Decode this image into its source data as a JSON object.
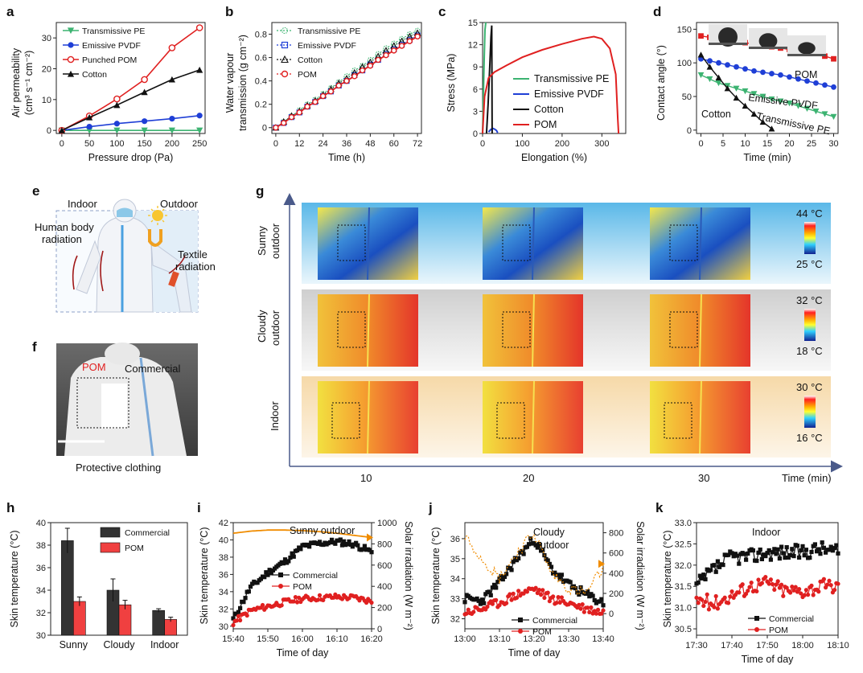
{
  "panels": {
    "a": "a",
    "b": "b",
    "c": "c",
    "d": "d",
    "e": "e",
    "f": "f",
    "g": "g",
    "h": "h",
    "i": "i",
    "j": "j",
    "k": "k"
  },
  "colors": {
    "transmissive_pe": "#3cb371",
    "emissive_pvdf": "#1f3fd6",
    "punched_pom": "#e02020",
    "pom": "#e02020",
    "cotton": "#111111",
    "commercial_bar": "#333333",
    "pom_bar": "#f04040",
    "solar": "#f08c00"
  },
  "panel_e": {
    "indoor": "Indoor",
    "outdoor": "Outdoor",
    "human_body_radiation_1": "Human body",
    "human_body_radiation_2": "radiation",
    "textile_radiation_1": "Textile",
    "textile_radiation_2": "radiation"
  },
  "panel_f": {
    "pom": "POM",
    "commercial": "Commercial",
    "caption": "Protective clothing"
  },
  "panel_g": {
    "rows": [
      {
        "label_1": "Sunny",
        "label_2": "outdoor",
        "scale_max": "44 °C",
        "scale_min": "25 °C"
      },
      {
        "label_1": "Cloudy",
        "label_2": "outdoor",
        "scale_max": "32 °C",
        "scale_min": "18 °C"
      },
      {
        "label_1": "Indoor",
        "label_2": "",
        "scale_max": "30 °C",
        "scale_min": "16 °C"
      }
    ],
    "times": [
      "10",
      "20",
      "30"
    ],
    "xlabel": "Time (min)"
  },
  "chart_data": [
    {
      "panel": "a",
      "type": "line",
      "xlabel": "Pressure drop (Pa)",
      "ylabel": "Air permeability",
      "ylabel_units": "(cm³ s⁻¹ cm⁻²)",
      "xlim": [
        -10,
        260
      ],
      "ylim": [
        -1,
        35
      ],
      "xticks": [
        0,
        50,
        100,
        150,
        200,
        250
      ],
      "yticks": [
        0,
        10,
        20,
        30
      ],
      "x": [
        0,
        50,
        100,
        150,
        200,
        250
      ],
      "series": [
        {
          "name": "Transmissive PE",
          "marker": "tri-down",
          "values": [
            0,
            0,
            0,
            0,
            0,
            0
          ]
        },
        {
          "name": "Emissive PVDF",
          "marker": "circle",
          "values": [
            0,
            1.2,
            2.2,
            3.0,
            3.8,
            4.8
          ]
        },
        {
          "name": "Punched POM",
          "marker": "open-circle",
          "values": [
            0,
            4.7,
            10.2,
            16.5,
            26.8,
            33.3
          ]
        },
        {
          "name": "Cotton",
          "marker": "tri-up",
          "values": [
            0,
            4.2,
            8.2,
            12.4,
            16.5,
            19.6
          ]
        }
      ]
    },
    {
      "panel": "b",
      "type": "line",
      "xlabel": "Time (h)",
      "ylabel": "Water vapour",
      "ylabel_2": "transmission (g cm⁻²)",
      "xlim": [
        -2,
        74
      ],
      "ylim": [
        -0.05,
        0.9
      ],
      "xticks": [
        0,
        12,
        24,
        36,
        48,
        60,
        72
      ],
      "xtick_labels": [
        "0",
        "12",
        "24",
        "36",
        "48",
        "60",
        "72"
      ],
      "yticks": [
        0,
        0.2,
        0.4,
        0.6,
        0.8
      ],
      "x": [
        0,
        4,
        8,
        12,
        16,
        20,
        24,
        28,
        32,
        36,
        40,
        44,
        48,
        52,
        56,
        60,
        64,
        68,
        72
      ],
      "series": [
        {
          "name": "Transmissive PE",
          "values": [
            0,
            0.05,
            0.1,
            0.15,
            0.2,
            0.24,
            0.29,
            0.34,
            0.39,
            0.44,
            0.49,
            0.53,
            0.58,
            0.63,
            0.68,
            0.72,
            0.76,
            0.8,
            0.83
          ]
        },
        {
          "name": "Emissive PVDF",
          "values": [
            0,
            0.04,
            0.09,
            0.13,
            0.18,
            0.22,
            0.27,
            0.31,
            0.36,
            0.4,
            0.45,
            0.49,
            0.54,
            0.58,
            0.63,
            0.67,
            0.71,
            0.75,
            0.79
          ]
        },
        {
          "name": "Cotton",
          "values": [
            0,
            0.05,
            0.1,
            0.14,
            0.19,
            0.23,
            0.28,
            0.33,
            0.38,
            0.42,
            0.47,
            0.52,
            0.56,
            0.61,
            0.66,
            0.7,
            0.74,
            0.78,
            0.81
          ]
        },
        {
          "name": "POM",
          "values": [
            0,
            0.04,
            0.09,
            0.13,
            0.18,
            0.22,
            0.27,
            0.31,
            0.36,
            0.4,
            0.44,
            0.49,
            0.53,
            0.58,
            0.62,
            0.66,
            0.7,
            0.74,
            0.78
          ]
        }
      ]
    },
    {
      "panel": "c",
      "type": "line",
      "xlabel": "Elongation (%)",
      "ylabel": "Stress (MPa)",
      "xlim": [
        0,
        360
      ],
      "ylim": [
        0,
        15
      ],
      "xticks": [
        0,
        100,
        200,
        300
      ],
      "yticks": [
        0,
        3,
        6,
        9,
        12,
        15
      ],
      "series": [
        {
          "name": "Transmissive PE",
          "x": [
            0,
            2,
            4,
            6,
            8
          ],
          "y": [
            0,
            5,
            10,
            14,
            15
          ]
        },
        {
          "name": "Emissive PVDF",
          "x": [
            15,
            20,
            25,
            30,
            35,
            38
          ],
          "y": [
            0.2,
            0.5,
            0.7,
            0.6,
            0.4,
            0.1
          ]
        },
        {
          "name": "Cotton",
          "x": [
            10,
            14,
            18,
            21,
            23,
            24
          ],
          "y": [
            0,
            4,
            9,
            13,
            14.6,
            0
          ]
        },
        {
          "name": "POM",
          "x": [
            0,
            5,
            15,
            30,
            60,
            100,
            150,
            200,
            250,
            280,
            300,
            320,
            335,
            340,
            342
          ],
          "y": [
            0,
            5,
            7.5,
            8.3,
            9.2,
            10.3,
            11.3,
            12.1,
            12.8,
            13.1,
            12.8,
            11.5,
            8,
            2,
            0
          ]
        }
      ]
    },
    {
      "panel": "d",
      "type": "line",
      "xlabel": "Time (min)",
      "ylabel": "Contact angle (°)",
      "xlim": [
        -1,
        31
      ],
      "ylim": [
        -5,
        160
      ],
      "xticks": [
        0,
        5,
        10,
        15,
        20,
        25,
        30
      ],
      "yticks": [
        0,
        50,
        100,
        150
      ],
      "annotations": [
        "POM",
        "Emissive PVDF",
        "Cotton",
        "Transmissive PE"
      ],
      "series": [
        {
          "name": "POM",
          "x": [
            0,
            2,
            4,
            6,
            8,
            10,
            12,
            14,
            16,
            18,
            20,
            22,
            24,
            26,
            28,
            30
          ],
          "y": [
            140,
            138,
            136,
            134,
            132,
            130,
            128,
            126,
            124,
            122,
            120,
            118,
            116,
            114,
            110,
            106
          ]
        },
        {
          "name": "Emissive PVDF",
          "x": [
            0,
            2,
            4,
            6,
            8,
            10,
            12,
            14,
            16,
            18,
            20,
            22,
            24,
            26,
            28,
            30
          ],
          "y": [
            106,
            103,
            100,
            97,
            94,
            91,
            88,
            86,
            84,
            82,
            79,
            76,
            73,
            70,
            67,
            64
          ]
        },
        {
          "name": "Transmissive PE",
          "x": [
            0,
            2,
            4,
            6,
            8,
            10,
            12,
            14,
            16,
            18,
            20,
            22,
            24,
            26,
            28,
            30
          ],
          "y": [
            82,
            76,
            70,
            66,
            62,
            58,
            54,
            50,
            46,
            43,
            40,
            36,
            32,
            28,
            24,
            20
          ]
        },
        {
          "name": "Cotton",
          "x": [
            0,
            2,
            4,
            6,
            8,
            10,
            12,
            14,
            16
          ],
          "y": [
            112,
            94,
            78,
            62,
            48,
            36,
            24,
            12,
            2
          ]
        }
      ]
    },
    {
      "panel": "h",
      "type": "bar",
      "categories": [
        "Sunny",
        "Cloudy",
        "Indoor"
      ],
      "ylabel": "Skin temperature (°C)",
      "ylim": [
        30,
        40
      ],
      "yticks": [
        30,
        32,
        34,
        36,
        38,
        40
      ],
      "series": [
        {
          "name": "Commercial",
          "values": [
            38.4,
            34.0,
            32.2
          ],
          "errors": [
            1.1,
            1.0,
            0.15
          ]
        },
        {
          "name": "POM",
          "values": [
            33.0,
            32.7,
            31.4
          ],
          "errors": [
            0.4,
            0.4,
            0.2
          ]
        }
      ]
    },
    {
      "panel": "i",
      "type": "line",
      "title": "Sunny outdoor",
      "xlabel": "Time of day",
      "ylabel": "Skin temperature (°C)",
      "ylabel_right": "Solar irradiation (W m⁻²)",
      "xticks": [
        "15:40",
        "15:50",
        "16:00",
        "16:10",
        "16:20"
      ],
      "ylim": [
        29.7,
        42
      ],
      "yticks": [
        30,
        32,
        34,
        36,
        38,
        40,
        42
      ],
      "y2lim": [
        0,
        1000
      ],
      "y2ticks": [
        0,
        200,
        400,
        600,
        800,
        1000
      ],
      "x_minutes": [
        0,
        5,
        10,
        15,
        20,
        25,
        30,
        35,
        40
      ],
      "series": [
        {
          "name": "Commercial",
          "values": [
            30.8,
            34.5,
            36.2,
            37.5,
            39.2,
            39.6,
            39.8,
            39.5,
            38.6
          ]
        },
        {
          "name": "POM",
          "values": [
            30.4,
            31.8,
            32.3,
            32.8,
            33.2,
            33.3,
            33.4,
            33.3,
            32.9
          ]
        },
        {
          "name": "Solar irradiation",
          "axis": "right",
          "values": [
            900,
            920,
            930,
            930,
            925,
            915,
            900,
            880,
            860
          ]
        }
      ]
    },
    {
      "panel": "j",
      "type": "line",
      "title_1": "Cloudy",
      "title_2": "outdoor",
      "xlabel": "Time of day",
      "ylabel": "Skin temperature (°C)",
      "ylabel_right": "Solar irradiation (W m⁻²)",
      "xticks": [
        "13:00",
        "13:10",
        "13:20",
        "13:30",
        "13:40"
      ],
      "ylim": [
        31.5,
        36.8
      ],
      "yticks": [
        32,
        33,
        34,
        35,
        36
      ],
      "y2lim": [
        -150,
        900
      ],
      "y2ticks": [
        0,
        200,
        400,
        600,
        800
      ],
      "x_minutes": [
        0,
        5,
        10,
        15,
        20,
        25,
        30,
        35,
        40
      ],
      "series": [
        {
          "name": "Commercial",
          "values": [
            33.0,
            32.9,
            33.8,
            35.0,
            36.0,
            34.5,
            33.7,
            33.2,
            32.8
          ]
        },
        {
          "name": "POM",
          "values": [
            32.3,
            32.5,
            32.8,
            33.2,
            33.5,
            33.0,
            32.8,
            32.5,
            32.3
          ]
        },
        {
          "name": "Solar irradiation",
          "axis": "right",
          "values": [
            780,
            550,
            350,
            600,
            800,
            400,
            250,
            200,
            450
          ]
        }
      ]
    },
    {
      "panel": "k",
      "type": "line",
      "title": "Indoor",
      "xlabel": "Time of day",
      "ylabel": "Skin temperature (°C)",
      "xticks": [
        "17:30",
        "17:40",
        "17:50",
        "18:00",
        "18:10"
      ],
      "ylim": [
        30.35,
        33.0
      ],
      "yticks": [
        30.5,
        31.0,
        31.5,
        32.0,
        32.5,
        33.0
      ],
      "x_minutes": [
        0,
        5,
        10,
        15,
        20,
        25,
        30,
        35,
        40
      ],
      "series": [
        {
          "name": "Commercial",
          "values": [
            31.5,
            31.9,
            32.2,
            32.2,
            32.3,
            32.3,
            32.3,
            32.4,
            32.3
          ]
        },
        {
          "name": "POM",
          "values": [
            31.2,
            31.1,
            31.3,
            31.5,
            31.6,
            31.4,
            31.4,
            31.5,
            31.5
          ]
        }
      ]
    }
  ]
}
